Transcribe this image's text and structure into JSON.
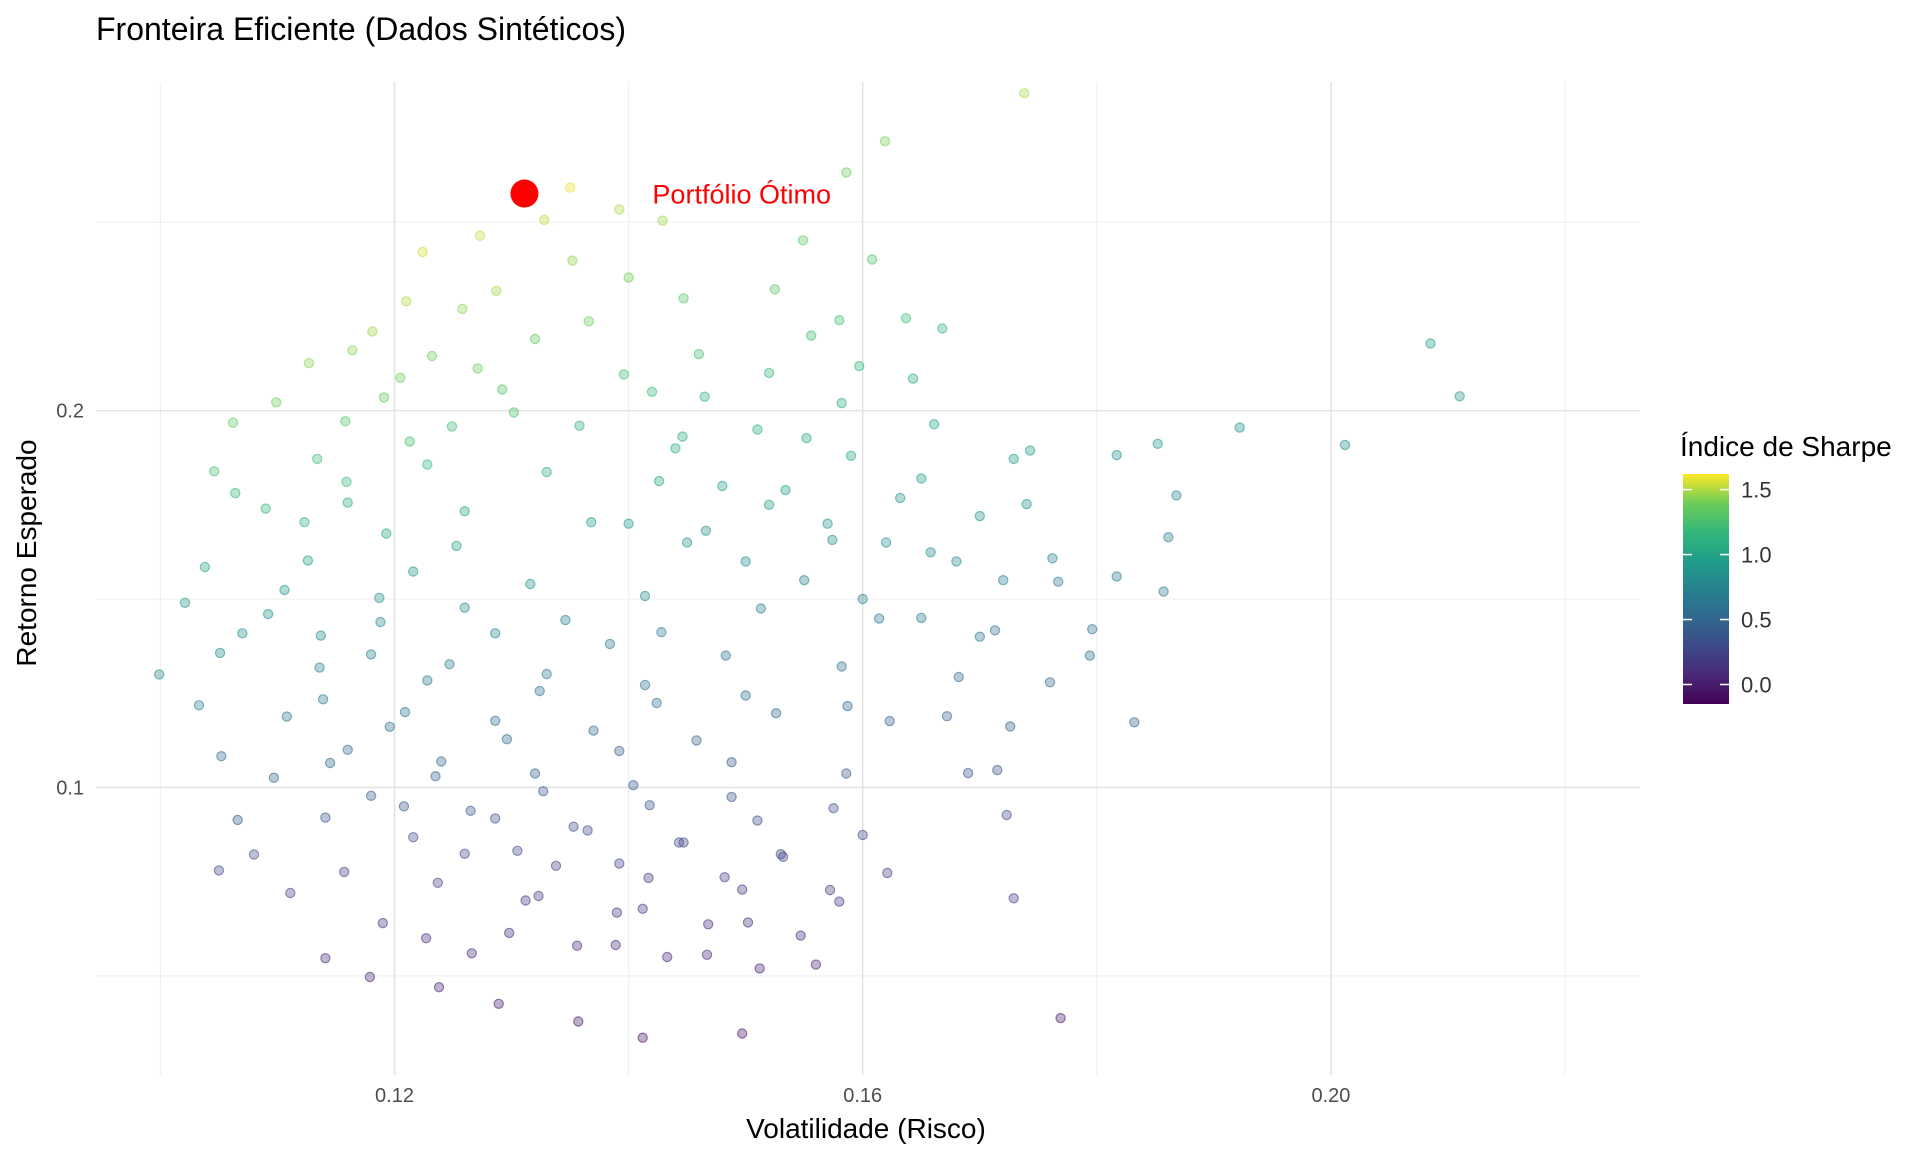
{
  "chart_data": {
    "type": "scatter",
    "title": "Fronteira Eficiente (Dados Sintéticos)",
    "xlabel": "Volatilidade (Risco)",
    "ylabel": "Retorno Esperado",
    "xlim": [
      0.0945,
      0.2264
    ],
    "ylim": [
      0.0237,
      0.2872
    ],
    "x_ticks": [
      {
        "value": 0.12,
        "label": "0.12"
      },
      {
        "value": 0.16,
        "label": "0.16"
      },
      {
        "value": 0.2,
        "label": "0.20"
      }
    ],
    "y_ticks": [
      {
        "value": 0.1,
        "label": "0.1"
      },
      {
        "value": 0.2,
        "label": "0.2"
      }
    ],
    "x_minor_ticks": [
      0.1,
      0.14,
      0.18,
      0.22
    ],
    "y_minor_ticks": [
      0.05,
      0.15,
      0.25
    ],
    "grid": true,
    "legend": {
      "title": "Índice de Sharpe",
      "position": "right",
      "palette": "viridis",
      "range": [
        -0.15,
        1.62
      ],
      "ticks": [
        {
          "value": 1.5,
          "label": "1.5"
        },
        {
          "value": 1.0,
          "label": "1.0"
        },
        {
          "value": 0.5,
          "label": "0.5"
        },
        {
          "value": 0.0,
          "label": "0.0"
        }
      ]
    },
    "point_opacity": 0.28,
    "optimal_portfolio": {
      "x": 0.1311,
      "y": 0.2576,
      "label": "Portfólio Ótimo",
      "color": "#ff0000"
    },
    "points": [
      [
        0.1738,
        0.2842,
        1.49
      ],
      [
        0.1619,
        0.2715,
        1.42
      ],
      [
        0.1586,
        0.2632,
        1.38
      ],
      [
        0.135,
        0.2592,
        1.59
      ],
      [
        0.1392,
        0.2534,
        1.5
      ],
      [
        0.1328,
        0.2506,
        1.52
      ],
      [
        0.1429,
        0.2504,
        1.47
      ],
      [
        0.1273,
        0.2464,
        1.52
      ],
      [
        0.1224,
        0.2421,
        1.55
      ],
      [
        0.1352,
        0.2398,
        1.45
      ],
      [
        0.1608,
        0.2401,
        1.29
      ],
      [
        0.1549,
        0.2452,
        1.33
      ],
      [
        0.14,
        0.2353,
        1.4
      ],
      [
        0.121,
        0.229,
        1.5
      ],
      [
        0.1258,
        0.227,
        1.45
      ],
      [
        0.1447,
        0.2298,
        1.32
      ],
      [
        0.1525,
        0.2322,
        1.3
      ],
      [
        0.1637,
        0.2245,
        1.2
      ],
      [
        0.1556,
        0.2199,
        1.22
      ],
      [
        0.1668,
        0.2218,
        1.14
      ],
      [
        0.1181,
        0.221,
        1.47
      ],
      [
        0.1164,
        0.216,
        1.44
      ],
      [
        0.132,
        0.219,
        1.34
      ],
      [
        0.1232,
        0.2145,
        1.38
      ],
      [
        0.1127,
        0.2126,
        1.45
      ],
      [
        0.1597,
        0.2118,
        1.14
      ],
      [
        0.1396,
        0.2096,
        1.24
      ],
      [
        0.1292,
        0.2056,
        1.28
      ],
      [
        0.1191,
        0.2035,
        1.34
      ],
      [
        0.1099,
        0.2022,
        1.38
      ],
      [
        0.1465,
        0.2037,
        1.14
      ],
      [
        0.1643,
        0.2085,
        1.08
      ],
      [
        0.1582,
        0.202,
        1.08
      ],
      [
        0.1062,
        0.1968,
        1.34
      ],
      [
        0.1158,
        0.1972,
        1.28
      ],
      [
        0.1249,
        0.1958,
        1.22
      ],
      [
        0.1358,
        0.196,
        1.14
      ],
      [
        0.1446,
        0.1931,
        1.08
      ],
      [
        0.1552,
        0.1927,
        1.03
      ],
      [
        0.1661,
        0.1964,
        1.0
      ],
      [
        0.1729,
        0.1872,
        0.93
      ],
      [
        0.1743,
        0.1894,
        0.95
      ],
      [
        0.1922,
        0.1955,
        0.86
      ],
      [
        0.2012,
        0.1909,
        0.8
      ],
      [
        0.2085,
        0.2178,
        0.94
      ],
      [
        0.211,
        0.2038,
        0.88
      ],
      [
        0.1852,
        0.1912,
        0.88
      ],
      [
        0.1817,
        0.1882,
        0.85
      ],
      [
        0.1868,
        0.1775,
        0.78
      ],
      [
        0.174,
        0.1752,
        0.82
      ],
      [
        0.1632,
        0.1768,
        0.88
      ],
      [
        0.1534,
        0.1789,
        0.95
      ],
      [
        0.1426,
        0.1813,
        1.01
      ],
      [
        0.133,
        0.1837,
        1.08
      ],
      [
        0.1228,
        0.1857,
        1.15
      ],
      [
        0.1134,
        0.1872,
        1.22
      ],
      [
        0.1046,
        0.1839,
        1.24
      ],
      [
        0.1064,
        0.1781,
        1.18
      ],
      [
        0.116,
        0.1756,
        1.08
      ],
      [
        0.126,
        0.1733,
        1.0
      ],
      [
        0.1368,
        0.1704,
        0.93
      ],
      [
        0.1466,
        0.1681,
        0.87
      ],
      [
        0.1574,
        0.1657,
        0.82
      ],
      [
        0.1658,
        0.1624,
        0.77
      ],
      [
        0.1762,
        0.1608,
        0.72
      ],
      [
        0.1861,
        0.1664,
        0.72
      ],
      [
        0.1857,
        0.152,
        0.65
      ],
      [
        0.1817,
        0.156,
        0.68
      ],
      [
        0.1767,
        0.1546,
        0.67
      ],
      [
        0.1796,
        0.142,
        0.6
      ],
      [
        0.1794,
        0.135,
        0.56
      ],
      [
        0.1713,
        0.1417,
        0.62
      ],
      [
        0.1614,
        0.1448,
        0.66
      ],
      [
        0.1513,
        0.1475,
        0.71
      ],
      [
        0.1414,
        0.1508,
        0.77
      ],
      [
        0.1316,
        0.154,
        0.83
      ],
      [
        0.1216,
        0.1573,
        0.9
      ],
      [
        0.1126,
        0.1602,
        0.97
      ],
      [
        0.1038,
        0.1585,
        0.99
      ],
      [
        0.1021,
        0.149,
        0.9
      ],
      [
        0.1092,
        0.146,
        0.85
      ],
      [
        0.1188,
        0.1439,
        0.8
      ],
      [
        0.1286,
        0.1409,
        0.74
      ],
      [
        0.1384,
        0.1381,
        0.68
      ],
      [
        0.1483,
        0.135,
        0.62
      ],
      [
        0.1582,
        0.1321,
        0.57
      ],
      [
        0.1682,
        0.1293,
        0.53
      ],
      [
        0.176,
        0.1279,
        0.5
      ],
      [
        0.1832,
        0.1173,
        0.43
      ],
      [
        0.1726,
        0.1162,
        0.44
      ],
      [
        0.1623,
        0.1176,
        0.47
      ],
      [
        0.1526,
        0.1197,
        0.51
      ],
      [
        0.1424,
        0.1224,
        0.56
      ],
      [
        0.1324,
        0.1256,
        0.62
      ],
      [
        0.1228,
        0.1284,
        0.67
      ],
      [
        0.1136,
        0.1318,
        0.74
      ],
      [
        0.1051,
        0.1357,
        0.82
      ],
      [
        0.0999,
        0.13,
        0.78
      ],
      [
        0.1033,
        0.1218,
        0.7
      ],
      [
        0.1108,
        0.1188,
        0.64
      ],
      [
        0.1196,
        0.1161,
        0.58
      ],
      [
        0.1296,
        0.1128,
        0.51
      ],
      [
        0.1392,
        0.1097,
        0.46
      ],
      [
        0.1488,
        0.1067,
        0.41
      ],
      [
        0.1586,
        0.1037,
        0.37
      ],
      [
        0.169,
        0.1038,
        0.36
      ],
      [
        0.1715,
        0.1046,
        0.36
      ],
      [
        0.1723,
        0.0927,
        0.29
      ],
      [
        0.1729,
        0.0706,
        0.16
      ],
      [
        0.1769,
        0.0388,
        -0.02
      ],
      [
        0.1497,
        0.0347,
        -0.05
      ],
      [
        0.1412,
        0.0336,
        -0.06
      ],
      [
        0.1357,
        0.0379,
        -0.03
      ],
      [
        0.1289,
        0.0426,
        0.0
      ],
      [
        0.1238,
        0.047,
        0.03
      ],
      [
        0.1179,
        0.0497,
        0.05
      ],
      [
        0.1141,
        0.0547,
        0.09
      ],
      [
        0.1227,
        0.06,
        0.12
      ],
      [
        0.1298,
        0.0614,
        0.12
      ],
      [
        0.1389,
        0.0582,
        0.09
      ],
      [
        0.1467,
        0.0556,
        0.07
      ],
      [
        0.156,
        0.053,
        0.05
      ],
      [
        0.1502,
        0.0642,
        0.13
      ],
      [
        0.1412,
        0.0678,
        0.16
      ],
      [
        0.1323,
        0.0712,
        0.19
      ],
      [
        0.1237,
        0.0747,
        0.22
      ],
      [
        0.1157,
        0.0776,
        0.25
      ],
      [
        0.108,
        0.0822,
        0.31
      ],
      [
        0.1066,
        0.0914,
        0.39
      ],
      [
        0.1141,
        0.092,
        0.38
      ],
      [
        0.1216,
        0.0868,
        0.32
      ],
      [
        0.1305,
        0.0832,
        0.28
      ],
      [
        0.1392,
        0.0798,
        0.25
      ],
      [
        0.1482,
        0.0762,
        0.21
      ],
      [
        0.1572,
        0.0728,
        0.18
      ],
      [
        0.1621,
        0.0773,
        0.21
      ],
      [
        0.1532,
        0.0816,
        0.25
      ],
      [
        0.1443,
        0.0854,
        0.29
      ],
      [
        0.1353,
        0.0896,
        0.33
      ],
      [
        0.1265,
        0.0938,
        0.37
      ],
      [
        0.118,
        0.0978,
        0.42
      ],
      [
        0.1097,
        0.1026,
        0.48
      ],
      [
        0.1052,
        0.1083,
        0.54
      ],
      [
        0.1145,
        0.1065,
        0.51
      ],
      [
        0.1235,
        0.103,
        0.46
      ],
      [
        0.1327,
        0.099,
        0.41
      ],
      [
        0.1418,
        0.0953,
        0.36
      ],
      [
        0.151,
        0.0912,
        0.32
      ],
      [
        0.16,
        0.0874,
        0.28
      ],
      [
        0.1123,
        0.1704,
        1.11
      ],
      [
        0.1193,
        0.1674,
        1.04
      ],
      [
        0.1253,
        0.1641,
        0.98
      ],
      [
        0.109,
        0.174,
        1.16
      ],
      [
        0.1159,
        0.1811,
        1.18
      ],
      [
        0.1213,
        0.1918,
        1.23
      ],
      [
        0.1302,
        0.1995,
        1.25
      ],
      [
        0.1205,
        0.2087,
        1.4
      ],
      [
        0.1271,
        0.2112,
        1.37
      ],
      [
        0.1366,
        0.2237,
        1.38
      ],
      [
        0.1287,
        0.2318,
        1.48
      ],
      [
        0.1187,
        0.1503,
        0.86
      ],
      [
        0.126,
        0.1477,
        0.8
      ],
      [
        0.1346,
        0.1444,
        0.74
      ],
      [
        0.1428,
        0.1412,
        0.69
      ],
      [
        0.1137,
        0.1403,
        0.79
      ],
      [
        0.107,
        0.1409,
        0.82
      ],
      [
        0.1139,
        0.1234,
        0.66
      ],
      [
        0.1209,
        0.12,
        0.61
      ],
      [
        0.1286,
        0.1177,
        0.57
      ],
      [
        0.137,
        0.1151,
        0.52
      ],
      [
        0.1458,
        0.1125,
        0.48
      ],
      [
        0.1106,
        0.1524,
        0.91
      ],
      [
        0.118,
        0.1353,
        0.73
      ],
      [
        0.1247,
        0.1327,
        0.69
      ],
      [
        0.133,
        0.1301,
        0.64
      ],
      [
        0.1414,
        0.1272,
        0.6
      ],
      [
        0.15,
        0.1244,
        0.55
      ],
      [
        0.1587,
        0.1216,
        0.51
      ],
      [
        0.1672,
        0.1189,
        0.47
      ],
      [
        0.116,
        0.11,
        0.54
      ],
      [
        0.124,
        0.1069,
        0.49
      ],
      [
        0.132,
        0.1037,
        0.45
      ],
      [
        0.1404,
        0.1006,
        0.41
      ],
      [
        0.1488,
        0.0975,
        0.37
      ],
      [
        0.1575,
        0.0945,
        0.34
      ],
      [
        0.1208,
        0.095,
        0.37
      ],
      [
        0.1286,
        0.0918,
        0.34
      ],
      [
        0.1365,
        0.0886,
        0.3
      ],
      [
        0.1447,
        0.0854,
        0.27
      ],
      [
        0.153,
        0.0823,
        0.24
      ],
      [
        0.126,
        0.0824,
        0.26
      ],
      [
        0.1338,
        0.0792,
        0.23
      ],
      [
        0.1417,
        0.076,
        0.2
      ],
      [
        0.1497,
        0.0729,
        0.17
      ],
      [
        0.158,
        0.0697,
        0.15
      ],
      [
        0.1312,
        0.07,
        0.17
      ],
      [
        0.139,
        0.0668,
        0.14
      ],
      [
        0.1468,
        0.0637,
        0.11
      ],
      [
        0.1547,
        0.0607,
        0.09
      ],
      [
        0.1356,
        0.058,
        0.08
      ],
      [
        0.1433,
        0.055,
        0.06
      ],
      [
        0.1512,
        0.052,
        0.03
      ],
      [
        0.1266,
        0.056,
        0.08
      ],
      [
        0.119,
        0.064,
        0.15
      ],
      [
        0.1111,
        0.072,
        0.22
      ],
      [
        0.105,
        0.078,
        0.28
      ],
      [
        0.14,
        0.17,
        0.92
      ],
      [
        0.145,
        0.165,
        0.86
      ],
      [
        0.15,
        0.16,
        0.81
      ],
      [
        0.155,
        0.155,
        0.76
      ],
      [
        0.16,
        0.15,
        0.71
      ],
      [
        0.165,
        0.145,
        0.67
      ],
      [
        0.17,
        0.14,
        0.62
      ],
      [
        0.148,
        0.18,
        0.98
      ],
      [
        0.152,
        0.175,
        0.93
      ],
      [
        0.157,
        0.17,
        0.88
      ],
      [
        0.162,
        0.165,
        0.83
      ],
      [
        0.168,
        0.16,
        0.78
      ],
      [
        0.172,
        0.155,
        0.73
      ],
      [
        0.144,
        0.19,
        1.06
      ],
      [
        0.151,
        0.195,
        1.07
      ],
      [
        0.159,
        0.188,
        0.99
      ],
      [
        0.165,
        0.182,
        0.93
      ],
      [
        0.17,
        0.172,
        0.86
      ],
      [
        0.142,
        0.205,
        1.17
      ],
      [
        0.146,
        0.215,
        1.23
      ],
      [
        0.152,
        0.21,
        1.17
      ],
      [
        0.158,
        0.224,
        1.24
      ]
    ]
  }
}
